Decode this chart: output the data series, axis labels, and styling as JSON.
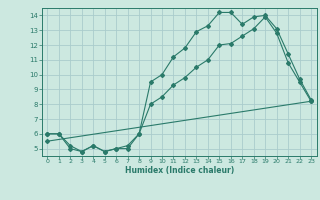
{
  "title": "",
  "xlabel": "Humidex (Indice chaleur)",
  "ylabel": "",
  "bg_color": "#cce8e0",
  "grid_color": "#aacccc",
  "line_color": "#2a7a6a",
  "xlim": [
    -0.5,
    23.5
  ],
  "ylim": [
    4.5,
    14.5
  ],
  "xticks": [
    0,
    1,
    2,
    3,
    4,
    5,
    6,
    7,
    8,
    9,
    10,
    11,
    12,
    13,
    14,
    15,
    16,
    17,
    18,
    19,
    20,
    21,
    22,
    23
  ],
  "yticks": [
    5,
    6,
    7,
    8,
    9,
    10,
    11,
    12,
    13,
    14
  ],
  "line1_x": [
    0,
    1,
    2,
    3,
    4,
    5,
    6,
    7,
    8,
    9,
    10,
    11,
    12,
    13,
    14,
    15,
    16,
    17,
    18,
    19,
    20,
    21,
    22,
    23
  ],
  "line1_y": [
    6.0,
    6.0,
    5.0,
    4.8,
    5.2,
    4.8,
    5.0,
    5.0,
    6.0,
    9.5,
    10.0,
    11.2,
    11.8,
    12.9,
    13.3,
    14.2,
    14.2,
    13.4,
    13.9,
    14.0,
    13.1,
    11.4,
    9.7,
    8.3
  ],
  "line2_x": [
    0,
    1,
    2,
    3,
    4,
    5,
    6,
    7,
    8,
    9,
    10,
    11,
    12,
    13,
    14,
    15,
    16,
    17,
    18,
    19,
    20,
    21,
    22,
    23
  ],
  "line2_y": [
    6.0,
    6.0,
    5.2,
    4.8,
    5.2,
    4.8,
    5.0,
    5.2,
    6.0,
    8.0,
    8.5,
    9.3,
    9.8,
    10.5,
    11.0,
    12.0,
    12.1,
    12.6,
    13.1,
    13.9,
    12.8,
    10.8,
    9.5,
    8.2
  ],
  "line3_x": [
    0,
    23
  ],
  "line3_y": [
    5.5,
    8.2
  ]
}
